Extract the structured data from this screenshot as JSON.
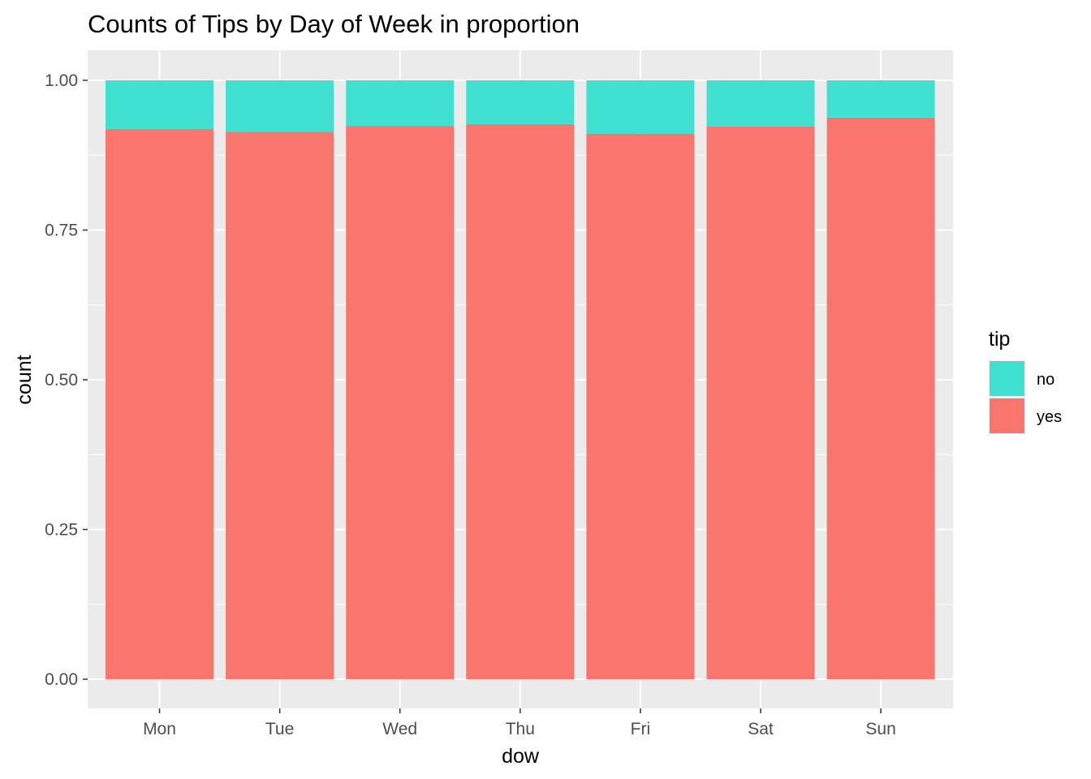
{
  "chart_data": {
    "type": "bar",
    "stacked": true,
    "position": "fill",
    "title": "Counts of Tips by Day of Week in proportion",
    "xlabel": "dow",
    "ylabel": "count",
    "categories": [
      "Mon",
      "Tue",
      "Wed",
      "Thu",
      "Fri",
      "Sat",
      "Sun"
    ],
    "ylim": [
      0,
      1
    ],
    "yticks": [
      "0.00",
      "0.25",
      "0.50",
      "0.75",
      "1.00"
    ],
    "ytick_values": [
      0,
      0.25,
      0.5,
      0.75,
      1
    ],
    "grid": true,
    "legend": {
      "title": "tip",
      "placement": "right",
      "entries": [
        "no",
        "yes"
      ]
    },
    "series": [
      {
        "name": "yes",
        "color": "#F8766D",
        "values": [
          0.919,
          0.914,
          0.924,
          0.927,
          0.911,
          0.923,
          0.938
        ]
      },
      {
        "name": "no",
        "color": "#40E0D0",
        "values": [
          0.081,
          0.086,
          0.076,
          0.073,
          0.089,
          0.077,
          0.062
        ]
      }
    ],
    "panel_background": "#EBEBEB",
    "grid_color": "#FFFFFF"
  }
}
